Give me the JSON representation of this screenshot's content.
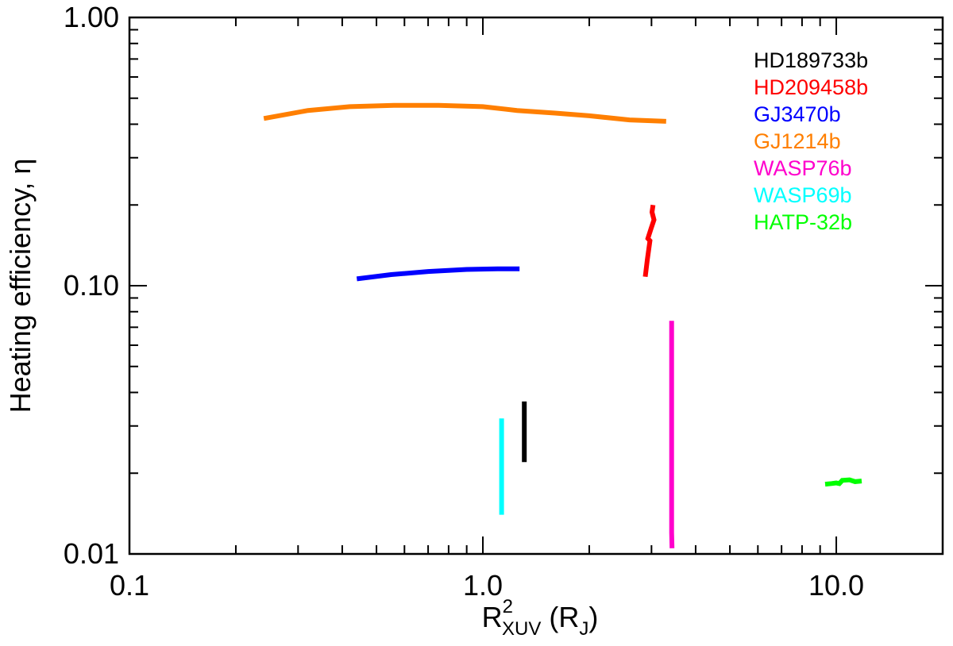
{
  "chart_data": {
    "type": "line",
    "xscale": "log",
    "yscale": "log",
    "xlim": [
      0.1,
      20
    ],
    "ylim": [
      0.01,
      1.0
    ],
    "xlabel": {
      "base": "R",
      "sup": "2",
      "sub": "XUV",
      "unit_open": " (R",
      "unit_sub": "J",
      "unit_close": ")"
    },
    "ylabel": "Heating efficiency, η",
    "x_tick_labels": [
      {
        "value": 0.1,
        "label": "0.1"
      },
      {
        "value": 1.0,
        "label": "1.0"
      },
      {
        "value": 10.0,
        "label": "10.0"
      }
    ],
    "y_tick_labels": [
      {
        "value": 0.01,
        "label": "0.01"
      },
      {
        "value": 0.1,
        "label": "0.10"
      },
      {
        "value": 1.0,
        "label": "1.00"
      }
    ],
    "legend_position": "top-right",
    "series": [
      {
        "name": "HD189733b",
        "color": "#000000",
        "points": [
          [
            1.31,
            0.022
          ],
          [
            1.31,
            0.037
          ]
        ]
      },
      {
        "name": "HD209458b",
        "color": "#ff0000",
        "points": [
          [
            2.88,
            0.108
          ],
          [
            2.92,
            0.125
          ],
          [
            2.97,
            0.147
          ],
          [
            2.93,
            0.15
          ],
          [
            2.99,
            0.163
          ],
          [
            3.05,
            0.176
          ],
          [
            3.01,
            0.188
          ],
          [
            3.03,
            0.2
          ]
        ]
      },
      {
        "name": "GJ3470b",
        "color": "#0000ff",
        "points": [
          [
            0.44,
            0.106
          ],
          [
            0.55,
            0.11
          ],
          [
            0.7,
            0.113
          ],
          [
            0.9,
            0.115
          ],
          [
            1.1,
            0.1155
          ],
          [
            1.27,
            0.1155
          ]
        ]
      },
      {
        "name": "GJ1214b",
        "color": "#ff7f00",
        "points": [
          [
            0.24,
            0.42
          ],
          [
            0.32,
            0.45
          ],
          [
            0.42,
            0.465
          ],
          [
            0.56,
            0.47
          ],
          [
            0.75,
            0.47
          ],
          [
            1.0,
            0.465
          ],
          [
            1.25,
            0.45
          ],
          [
            1.6,
            0.44
          ],
          [
            2.0,
            0.43
          ],
          [
            2.6,
            0.415
          ],
          [
            3.3,
            0.41
          ]
        ]
      },
      {
        "name": "WASP76b",
        "color": "#ff00cc",
        "points": [
          [
            3.43,
            0.0105
          ],
          [
            3.42,
            0.012
          ],
          [
            3.42,
            0.03
          ],
          [
            3.42,
            0.05
          ],
          [
            3.42,
            0.074
          ]
        ]
      },
      {
        "name": "WASP69b",
        "color": "#00ffff",
        "points": [
          [
            1.13,
            0.014
          ],
          [
            1.13,
            0.032
          ]
        ]
      },
      {
        "name": "HATP-32b",
        "color": "#00ff00",
        "points": [
          [
            9.3,
            0.0182
          ],
          [
            9.7,
            0.0183
          ],
          [
            10.0,
            0.0184
          ],
          [
            10.2,
            0.0183
          ],
          [
            10.4,
            0.0188
          ],
          [
            10.9,
            0.0189
          ],
          [
            11.3,
            0.0186
          ],
          [
            11.8,
            0.0187
          ]
        ]
      }
    ]
  }
}
